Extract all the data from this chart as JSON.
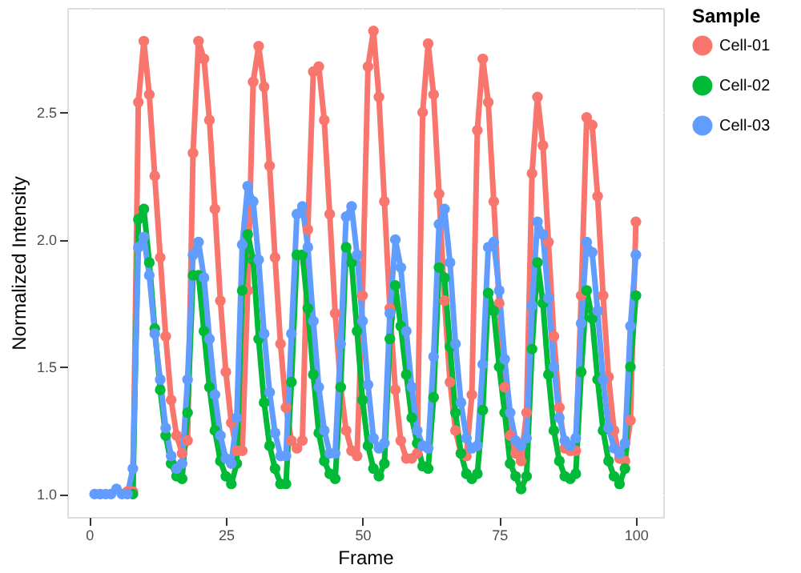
{
  "chart_data": {
    "type": "line",
    "xlabel": "Frame",
    "ylabel": "Normalized Intensity",
    "legend_title": "Sample",
    "legend": "right",
    "marker": "circle",
    "line_style": "solid",
    "grid": true,
    "xlim": [
      -4,
      105
    ],
    "xticks": [
      0,
      25,
      50,
      75,
      100
    ],
    "ylim": [
      0.91,
      2.91
    ],
    "yticks": [
      {
        "value": 1.0,
        "label": "1.0"
      },
      {
        "value": 1.5,
        "label": "1.5"
      },
      {
        "value": 2.0,
        "label": "2.0"
      },
      {
        "value": 2.5,
        "label": "2.5"
      }
    ],
    "x": [
      1,
      2,
      3,
      4,
      5,
      6,
      7,
      8,
      9,
      10,
      11,
      12,
      13,
      14,
      15,
      16,
      17,
      18,
      19,
      20,
      21,
      22,
      23,
      24,
      25,
      26,
      27,
      28,
      29,
      30,
      31,
      32,
      33,
      34,
      35,
      36,
      37,
      38,
      39,
      40,
      41,
      42,
      43,
      44,
      45,
      46,
      47,
      48,
      49,
      50,
      51,
      52,
      53,
      54,
      55,
      56,
      57,
      58,
      59,
      60,
      61,
      62,
      63,
      64,
      65,
      66,
      67,
      68,
      69,
      70,
      71,
      72,
      73,
      74,
      75,
      76,
      77,
      78,
      79,
      80,
      81,
      82,
      83,
      84,
      85,
      86,
      87,
      88,
      89,
      90,
      91,
      92,
      93,
      94,
      95,
      96,
      97,
      98,
      99,
      100
    ],
    "series": [
      {
        "name": "Cell-01",
        "color": "#f8766d",
        "values": [
          null,
          null,
          null,
          null,
          null,
          null,
          1.01,
          1.01,
          2.54,
          2.78,
          2.57,
          2.25,
          1.93,
          1.62,
          1.37,
          1.23,
          1.16,
          1.21,
          2.34,
          2.78,
          2.71,
          2.47,
          2.12,
          1.76,
          1.48,
          1.28,
          1.17,
          1.17,
          1.8,
          2.62,
          2.76,
          2.6,
          2.29,
          1.93,
          1.59,
          1.34,
          1.21,
          1.18,
          1.21,
          2.04,
          2.66,
          2.68,
          2.47,
          2.1,
          1.71,
          1.42,
          1.25,
          1.17,
          1.15,
          1.78,
          2.68,
          2.82,
          2.56,
          2.15,
          1.73,
          1.41,
          1.21,
          1.14,
          1.14,
          1.16,
          2.5,
          2.77,
          2.57,
          2.18,
          1.76,
          1.44,
          1.25,
          1.16,
          1.15,
          1.39,
          2.43,
          2.71,
          2.54,
          2.15,
          1.75,
          1.42,
          1.23,
          1.16,
          1.13,
          1.32,
          2.26,
          2.56,
          2.37,
          1.99,
          1.62,
          1.34,
          1.18,
          1.17,
          1.17,
          1.78,
          2.48,
          2.45,
          2.17,
          1.78,
          1.46,
          1.25,
          1.14,
          1.13,
          1.29,
          2.07
        ]
      },
      {
        "name": "Cell-02",
        "color": "#00ba38",
        "values": [
          null,
          null,
          null,
          null,
          null,
          null,
          null,
          1.0,
          2.08,
          2.12,
          1.91,
          1.65,
          1.41,
          1.23,
          1.12,
          1.07,
          1.06,
          1.32,
          1.86,
          1.86,
          1.64,
          1.42,
          1.25,
          1.13,
          1.07,
          1.04,
          1.12,
          1.8,
          2.02,
          1.92,
          1.61,
          1.36,
          1.19,
          1.1,
          1.04,
          1.04,
          1.44,
          1.94,
          1.94,
          1.73,
          1.47,
          1.24,
          1.13,
          1.08,
          1.06,
          1.42,
          1.97,
          1.91,
          1.64,
          1.37,
          1.19,
          1.1,
          1.07,
          1.12,
          1.61,
          1.82,
          1.66,
          1.47,
          1.3,
          1.2,
          1.11,
          1.1,
          1.38,
          1.89,
          1.85,
          1.58,
          1.32,
          1.16,
          1.08,
          1.06,
          1.08,
          1.33,
          1.79,
          1.72,
          1.5,
          1.32,
          1.12,
          1.07,
          1.02,
          1.07,
          1.57,
          1.91,
          1.75,
          1.47,
          1.25,
          1.13,
          1.07,
          1.06,
          1.08,
          1.48,
          1.8,
          1.69,
          1.45,
          1.25,
          1.13,
          1.07,
          1.04,
          1.1,
          1.5,
          1.78
        ]
      },
      {
        "name": "Cell-03",
        "color": "#619cff",
        "values": [
          1.0,
          1.0,
          1.0,
          1.0,
          1.02,
          1.0,
          1.0,
          1.1,
          1.97,
          2.01,
          1.86,
          1.63,
          1.45,
          1.26,
          1.15,
          1.1,
          1.12,
          1.45,
          1.94,
          1.99,
          1.85,
          1.61,
          1.39,
          1.23,
          1.14,
          1.12,
          1.3,
          1.98,
          2.21,
          2.15,
          1.92,
          1.63,
          1.4,
          1.24,
          1.15,
          1.15,
          1.63,
          2.1,
          2.13,
          1.97,
          1.68,
          1.42,
          1.25,
          1.16,
          1.16,
          1.59,
          2.09,
          2.13,
          1.94,
          1.68,
          1.43,
          1.22,
          1.18,
          1.2,
          1.71,
          2.0,
          1.89,
          1.64,
          1.42,
          1.25,
          1.19,
          1.18,
          1.54,
          2.06,
          2.12,
          1.91,
          1.59,
          1.36,
          1.22,
          1.18,
          1.19,
          1.51,
          1.97,
          1.99,
          1.8,
          1.53,
          1.32,
          1.21,
          1.19,
          1.22,
          1.74,
          2.07,
          2.02,
          1.77,
          1.5,
          1.3,
          1.21,
          1.19,
          1.22,
          1.67,
          1.99,
          1.95,
          1.72,
          1.45,
          1.26,
          1.18,
          1.16,
          1.2,
          1.66,
          1.94
        ]
      }
    ]
  }
}
